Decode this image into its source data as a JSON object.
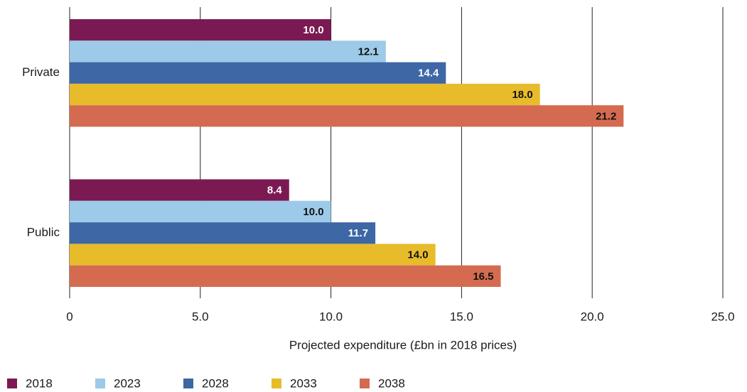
{
  "chart_data": {
    "type": "bar",
    "orientation": "horizontal",
    "x_axis_label": "Projected expenditure (£bn in 2018 prices)",
    "categories": [
      "Private",
      "Public"
    ],
    "series": [
      {
        "name": "2018",
        "color": "#7b1a52",
        "values": [
          10.0,
          8.4
        ],
        "value_labels": [
          "10.0",
          "8.4"
        ]
      },
      {
        "name": "2023",
        "color": "#9ccae8",
        "values": [
          12.1,
          10.0
        ],
        "value_labels": [
          "12.1",
          "10.0"
        ]
      },
      {
        "name": "2028",
        "color": "#3d67a5",
        "values": [
          14.4,
          11.7
        ],
        "value_labels": [
          "14.4",
          "11.7"
        ]
      },
      {
        "name": "2033",
        "color": "#e8bb2b",
        "values": [
          18.0,
          14.0
        ],
        "value_labels": [
          "18.0",
          "14.0"
        ]
      },
      {
        "name": "2038",
        "color": "#d46b50",
        "values": [
          21.2,
          16.5
        ],
        "value_labels": [
          "21.2",
          "16.5"
        ]
      }
    ],
    "xlim": [
      0,
      25
    ],
    "xticks": [
      0,
      {
        "value": 5,
        "label": "5.0"
      },
      {
        "value": 10,
        "label": "10.0"
      },
      {
        "value": 15,
        "label": "15.0"
      },
      {
        "value": 20,
        "label": "20.0"
      },
      {
        "value": 25,
        "label": "25.0"
      }
    ],
    "grid": true,
    "legend": "bottom-left"
  }
}
